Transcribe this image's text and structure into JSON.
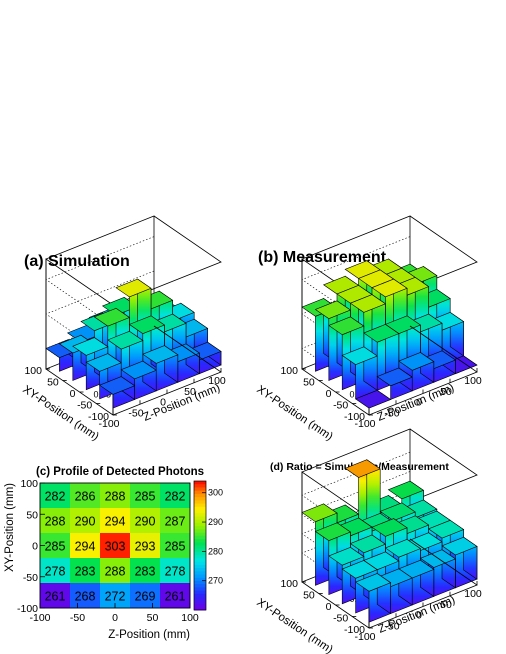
{
  "chart_data": [
    {
      "panel": "a",
      "type": "lego3d",
      "title": "(a) Simulation",
      "xlabel": "Z-Position (mm)",
      "ylabel": "XY-Position (mm)",
      "x_ticks": [
        "-100",
        "-50",
        "0",
        "50",
        "100"
      ],
      "y_ticks": [
        "-100",
        "-50",
        "0",
        "50",
        "100"
      ],
      "z_ticks": [
        "0.95",
        "1",
        "1.05"
      ],
      "zlim": [
        0.92,
        1.08
      ],
      "z_floor": 0.93,
      "values": [
        [
          0.95,
          0.96,
          0.97,
          0.96,
          0.95
        ],
        [
          0.97,
          0.99,
          1.0,
          0.99,
          0.97
        ],
        [
          0.98,
          1.01,
          1.04,
          1.01,
          0.98
        ],
        [
          0.97,
          0.99,
          1.0,
          0.99,
          0.97
        ],
        [
          0.95,
          0.96,
          0.97,
          0.96,
          0.95
        ]
      ]
    },
    {
      "panel": "b",
      "type": "lego3d",
      "title": "(b) Measurement",
      "xlabel": "Z-Position (mm)",
      "ylabel": "XY-Position (mm)",
      "x_ticks": [
        "-100",
        "-50",
        "0",
        "50",
        "100"
      ],
      "y_ticks": [
        "-100",
        "-50",
        "0",
        "50",
        "100"
      ],
      "z_ticks": [
        "0.95",
        "1",
        "1.05"
      ],
      "zlim": [
        0.92,
        1.08
      ],
      "z_floor": 0.93,
      "values": [
        [
          0.93,
          0.95,
          0.96,
          0.95,
          0.93
        ],
        [
          0.98,
          1.0,
          1.0,
          0.99,
          0.98
        ],
        [
          1.01,
          1.03,
          1.04,
          1.03,
          1.0
        ],
        [
          1.02,
          1.03,
          1.04,
          1.03,
          1.02
        ],
        [
          1.01,
          1.03,
          1.04,
          1.03,
          1.01
        ]
      ]
    },
    {
      "panel": "c",
      "type": "heatmap",
      "title": "(c) Profile of Detected Photons",
      "xlabel": "Z-Position (mm)",
      "ylabel": "XY-Position (mm)",
      "x_ticks": [
        "-100",
        "-50",
        "0",
        "50",
        "100"
      ],
      "y_ticks": [
        "-100",
        "-50",
        "0",
        "50",
        "100"
      ],
      "colorbar_ticks": [
        "270",
        "280",
        "290",
        "300"
      ],
      "zlim": [
        260,
        304
      ],
      "rows_top_to_bottom": [
        [
          282,
          286,
          288,
          285,
          282
        ],
        [
          288,
          290,
          294,
          290,
          287
        ],
        [
          285,
          294,
          303,
          293,
          285
        ],
        [
          278,
          283,
          288,
          283,
          278
        ],
        [
          261,
          268,
          272,
          269,
          261
        ]
      ]
    },
    {
      "panel": "d",
      "type": "lego3d",
      "title": "(d) Ratio = Simulation/Measurement",
      "xlabel": "Z-Position (mm)",
      "ylabel": "XY-Position (mm)",
      "x_ticks": [
        "-100",
        "-50",
        "0",
        "50",
        "100"
      ],
      "y_ticks": [
        "-100",
        "-50",
        "0",
        "50",
        "100"
      ],
      "z_ticks": [
        "0.99",
        "1",
        "1.01",
        "1.02"
      ],
      "zlim": [
        0.975,
        1.032
      ],
      "z_floor": 0.978,
      "values": [
        [
          0.994,
          0.992,
          0.992,
          0.993,
          0.995
        ],
        [
          0.996,
          0.996,
          0.998,
          0.997,
          0.999
        ],
        [
          0.998,
          1.0,
          1.004,
          1.001,
          0.999
        ],
        [
          1.006,
          1.004,
          1.002,
          1.003,
          1.0
        ],
        [
          1.011,
          1.006,
          1.025,
          1.002,
          1.005
        ]
      ]
    }
  ]
}
